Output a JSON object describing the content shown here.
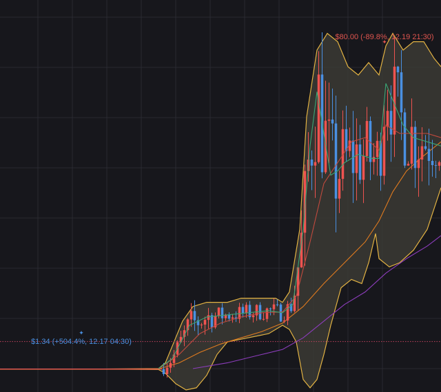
{
  "chart_data": {
    "type": "candlestick",
    "grid": true,
    "colors": {
      "background": "#17171c",
      "grid": "#2a2a31",
      "up_candle": "#ef5350",
      "down_candle": "#4a90e2",
      "bollinger_band": "#e3b343",
      "bollinger_fill": "#3b3934",
      "ma_fast": "#3aa676",
      "ma_mid": "#c24a3e",
      "ma_slow": "#e07b1f",
      "ma_long": "#8d3dbd",
      "reference_line": "#c2435e",
      "high_label": "#e0554f",
      "low_label": "#4a90e2"
    },
    "annotations": {
      "high": {
        "text": "$80.00 (-89.8%, 12.19 21:30)",
        "price": 80.0,
        "time": "12.19 21:30"
      },
      "low": {
        "text": "$1.34 (+504.4%, 12.17 04:30)",
        "price": 1.34,
        "time": "12.17 04:30"
      }
    },
    "reference_line_price": 8.1,
    "y_range": [
      -4,
      90
    ],
    "x_range": [
      0,
      128
    ],
    "candles": [],
    "bollinger_upper": [
      [
        0,
        1.5
      ],
      [
        30,
        1.5
      ],
      [
        46,
        1.6
      ],
      [
        48,
        3
      ],
      [
        50,
        7
      ],
      [
        53,
        13
      ],
      [
        56,
        16.5
      ],
      [
        60,
        17.5
      ],
      [
        66,
        17.5
      ],
      [
        70,
        18.5
      ],
      [
        76,
        18.5
      ],
      [
        80,
        18.5
      ],
      [
        82,
        17.5
      ],
      [
        84,
        20
      ],
      [
        87,
        35
      ],
      [
        89,
        62
      ],
      [
        92,
        78
      ],
      [
        95,
        82
      ],
      [
        98,
        80
      ],
      [
        101,
        74
      ],
      [
        104,
        72
      ],
      [
        107,
        75
      ],
      [
        110,
        72
      ],
      [
        112,
        79
      ],
      [
        114,
        82
      ],
      [
        117,
        78
      ],
      [
        120,
        80
      ],
      [
        123,
        80
      ],
      [
        126,
        76
      ],
      [
        128,
        74
      ]
    ],
    "bollinger_lower": [
      [
        0,
        1.5
      ],
      [
        30,
        1.5
      ],
      [
        46,
        1.4
      ],
      [
        48,
        0.5
      ],
      [
        51,
        -2
      ],
      [
        54,
        -3.5
      ],
      [
        57,
        -3
      ],
      [
        60,
        0
      ],
      [
        63,
        5
      ],
      [
        66,
        8
      ],
      [
        72,
        9
      ],
      [
        78,
        10
      ],
      [
        82,
        12
      ],
      [
        84,
        11
      ],
      [
        86,
        8
      ],
      [
        88,
        -1
      ],
      [
        90,
        -3
      ],
      [
        92,
        -1
      ],
      [
        94,
        5
      ],
      [
        96,
        12
      ],
      [
        99,
        21
      ],
      [
        102,
        23
      ],
      [
        105,
        22
      ],
      [
        107,
        27
      ],
      [
        109,
        34
      ],
      [
        110,
        28
      ],
      [
        113,
        26
      ],
      [
        116,
        27
      ],
      [
        120,
        30
      ],
      [
        124,
        35
      ],
      [
        128,
        45
      ]
    ],
    "ma_fast": [
      [
        46,
        1.6
      ],
      [
        50,
        4
      ],
      [
        55,
        12
      ],
      [
        60,
        14
      ],
      [
        66,
        14.5
      ],
      [
        72,
        15
      ],
      [
        78,
        15.5
      ],
      [
        82,
        15
      ],
      [
        85,
        17
      ],
      [
        88,
        35
      ],
      [
        90,
        55
      ],
      [
        92,
        68
      ],
      [
        94,
        58
      ],
      [
        96,
        48
      ],
      [
        98,
        49
      ],
      [
        100,
        51
      ],
      [
        104,
        53
      ],
      [
        108,
        52
      ],
      [
        110,
        52
      ],
      [
        112,
        70
      ],
      [
        114,
        66
      ],
      [
        117,
        60
      ],
      [
        120,
        57
      ],
      [
        124,
        56
      ],
      [
        128,
        55
      ]
    ],
    "ma_mid": [
      [
        46,
        1.5
      ],
      [
        52,
        5
      ],
      [
        58,
        10
      ],
      [
        64,
        12.5
      ],
      [
        70,
        14
      ],
      [
        76,
        15
      ],
      [
        82,
        15.2
      ],
      [
        86,
        19
      ],
      [
        90,
        32
      ],
      [
        94,
        46
      ],
      [
        98,
        51
      ],
      [
        102,
        56
      ],
      [
        106,
        57
      ],
      [
        110,
        54
      ],
      [
        112,
        60
      ],
      [
        116,
        58
      ],
      [
        120,
        58
      ],
      [
        124,
        58
      ],
      [
        128,
        57
      ]
    ],
    "ma_slow": [
      [
        0,
        1.5
      ],
      [
        46,
        1.5
      ],
      [
        52,
        3
      ],
      [
        58,
        5.5
      ],
      [
        64,
        7.5
      ],
      [
        70,
        9
      ],
      [
        76,
        10.5
      ],
      [
        82,
        12.5
      ],
      [
        88,
        16.5
      ],
      [
        94,
        22
      ],
      [
        100,
        27
      ],
      [
        106,
        32
      ],
      [
        110,
        37
      ],
      [
        114,
        44
      ],
      [
        118,
        49
      ],
      [
        122,
        52
      ],
      [
        128,
        56
      ]
    ],
    "ma_long": [
      [
        56,
        1.6
      ],
      [
        66,
        3
      ],
      [
        76,
        5
      ],
      [
        82,
        6.2
      ],
      [
        88,
        9
      ],
      [
        94,
        13
      ],
      [
        100,
        17
      ],
      [
        106,
        20
      ],
      [
        112,
        24.5
      ],
      [
        118,
        28
      ],
      [
        124,
        31
      ],
      [
        128,
        33.5
      ]
    ]
  }
}
